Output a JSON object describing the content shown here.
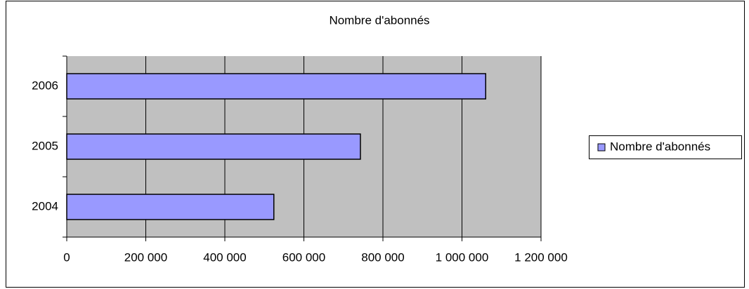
{
  "chart_data": {
    "type": "bar",
    "orientation": "horizontal",
    "title": "Nombre d'abonnés",
    "categories": [
      "2004",
      "2005",
      "2006"
    ],
    "series": [
      {
        "name": "Nombre d'abonnés",
        "color": "#9999ff",
        "values": [
          524000,
          743000,
          1060000
        ]
      }
    ],
    "xlim": [
      0,
      1200000
    ],
    "xticks": [
      0,
      {
        "value": 200000,
        "label": "200 000"
      },
      {
        "value": 400000,
        "label": "400 000"
      },
      {
        "value": 600000,
        "label": "600 000"
      },
      {
        "value": 800000,
        "label": "800 000"
      },
      {
        "value": 1000000,
        "label": "1 000 000"
      },
      {
        "value": 1200000,
        "label": "1 200 000"
      }
    ],
    "grid": true,
    "legend": "right"
  }
}
